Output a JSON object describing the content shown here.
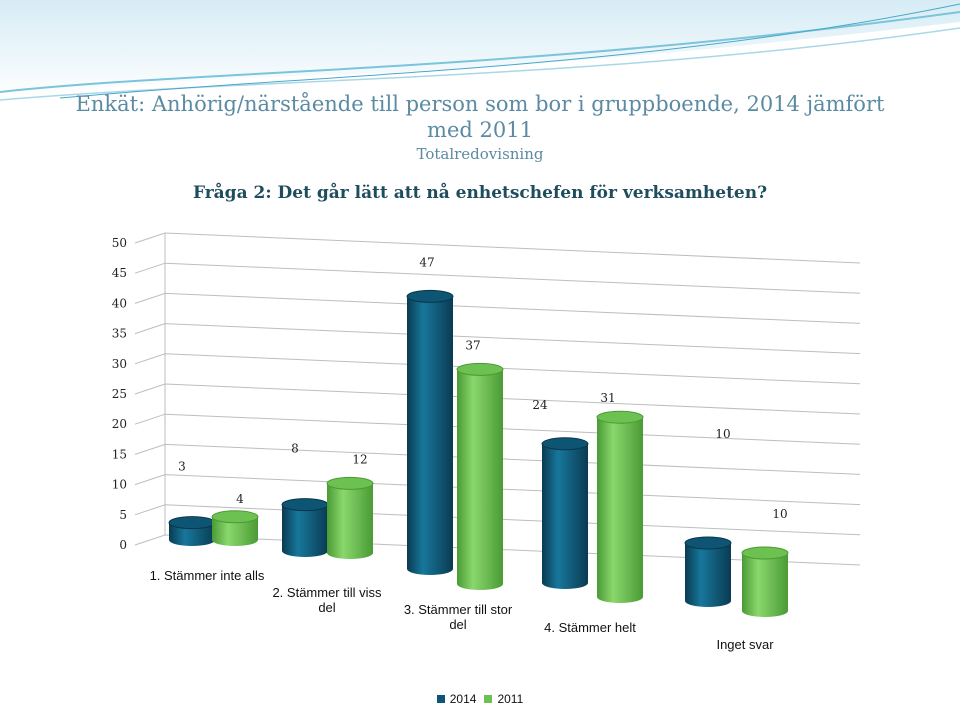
{
  "header": {
    "title_line1": "Enkät: Anhörig/närstående till person som bor i gruppboende, 2014 jämfört",
    "title_line2": "med 2011",
    "subtitle": "Totalredovisning",
    "question": "Fråga 2: Det går lätt att nå enhetschefen för verksamheten?"
  },
  "chart_data": {
    "type": "bar",
    "categories": [
      "1. Stämmer inte alls",
      "2. Stämmer till viss del",
      "3. Stämmer till stor del",
      "4. Stämmer helt",
      "Inget svar"
    ],
    "category_lines": [
      [
        "1. Stämmer inte alls"
      ],
      [
        "2. Stämmer till viss",
        "del"
      ],
      [
        "3. Stämmer till stor",
        "del"
      ],
      [
        "4. Stämmer helt"
      ],
      [
        "Inget svar"
      ]
    ],
    "series": [
      {
        "name": "2014",
        "values": [
          3,
          8,
          47,
          24,
          10
        ],
        "color": "#0e5574"
      },
      {
        "name": "2011",
        "values": [
          4,
          12,
          37,
          31,
          10
        ],
        "color": "#6cc150"
      }
    ],
    "ylim": [
      0,
      50
    ],
    "yticks": [
      "0",
      "5",
      "10",
      "15",
      "20",
      "25",
      "30",
      "35",
      "40",
      "45",
      "50"
    ],
    "grid": true,
    "legend_position": "bottom"
  }
}
